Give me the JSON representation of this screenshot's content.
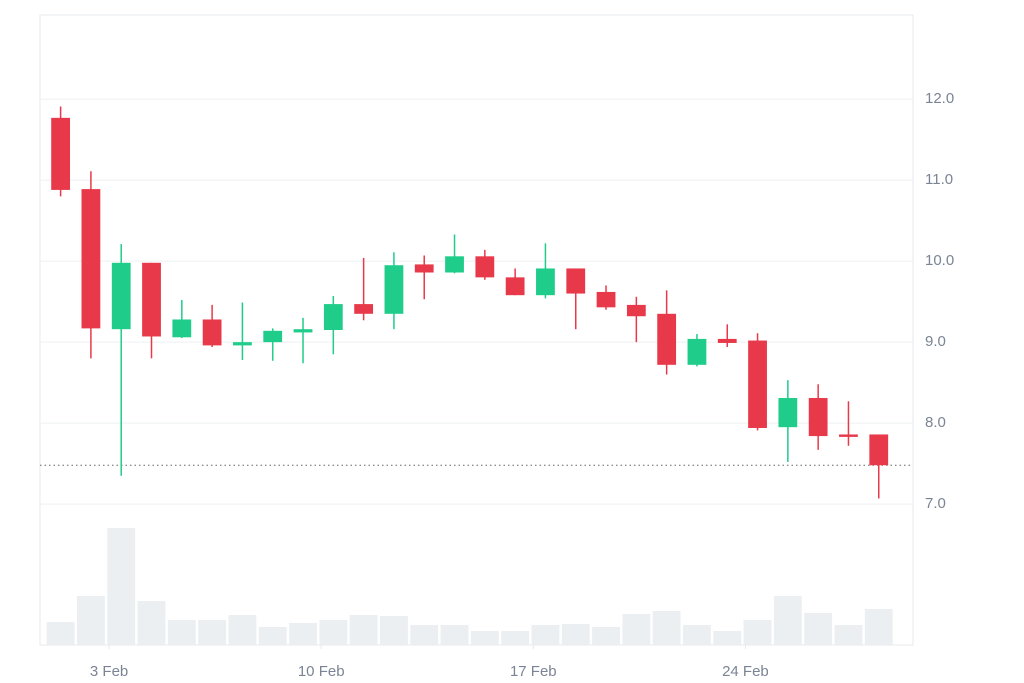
{
  "chart_data": {
    "type": "candlestick",
    "x": [
      1.4,
      2.4,
      3.4,
      4.4,
      5.4,
      6.4,
      7.4,
      8.4,
      9.4,
      10.4,
      11.4,
      12.4,
      13.4,
      14.4,
      15.4,
      16.4,
      17.4,
      18.4,
      19.4,
      20.4,
      21.4,
      22.4,
      23.4,
      24.4,
      25.4,
      26.4,
      27.4,
      28.4
    ],
    "open": [
      11.77,
      10.89,
      9.16,
      9.98,
      9.06,
      9.28,
      8.96,
      9.0,
      9.12,
      9.15,
      9.47,
      9.35,
      9.96,
      9.86,
      10.06,
      9.8,
      9.58,
      9.91,
      9.62,
      9.46,
      9.35,
      8.72,
      9.04,
      9.02,
      7.95,
      8.31,
      7.86,
      7.86
    ],
    "high": [
      11.91,
      11.11,
      10.21,
      9.98,
      9.52,
      9.46,
      9.49,
      9.17,
      9.3,
      9.57,
      10.04,
      10.11,
      10.07,
      10.33,
      10.14,
      9.91,
      10.22,
      9.91,
      9.7,
      9.56,
      9.64,
      9.1,
      9.22,
      9.11,
      8.53,
      8.48,
      8.27,
      7.86
    ],
    "low": [
      10.8,
      8.8,
      7.35,
      8.8,
      9.05,
      8.94,
      8.78,
      8.77,
      8.74,
      8.85,
      9.27,
      9.16,
      9.53,
      9.85,
      9.77,
      9.58,
      9.54,
      9.16,
      9.4,
      9.0,
      8.6,
      8.7,
      8.94,
      7.91,
      7.52,
      7.67,
      7.72,
      7.07
    ],
    "close": [
      10.88,
      9.17,
      9.98,
      9.07,
      9.28,
      8.96,
      9.0,
      9.14,
      9.16,
      9.47,
      9.35,
      9.95,
      9.86,
      10.06,
      9.8,
      9.58,
      9.91,
      9.6,
      9.43,
      9.32,
      8.72,
      9.04,
      8.99,
      7.94,
      8.31,
      7.84,
      7.83,
      7.48
    ],
    "volume": [
      23,
      49,
      117,
      44,
      25,
      25,
      30,
      18,
      22,
      25,
      30,
      29,
      20,
      20,
      14,
      14,
      20,
      21,
      18,
      31,
      34,
      20,
      14,
      25,
      49,
      32,
      20,
      36
    ],
    "up_color": "#1fcc8a",
    "down_color": "#e8394a",
    "volume_color": "#eceff2",
    "last_price": 7.48,
    "xlim": [
      0.72,
      29.53
    ],
    "xticks": [
      {
        "value": 3,
        "label": "3 Feb"
      },
      {
        "value": 10,
        "label": "10 Feb"
      },
      {
        "value": 17,
        "label": "17 Feb"
      },
      {
        "value": 24,
        "label": "24 Feb"
      }
    ],
    "ylim": [
      5.26,
      13.04
    ],
    "yticks": [
      {
        "value": 7,
        "label": "7.0"
      },
      {
        "value": 8,
        "label": "8.0"
      },
      {
        "value": 9,
        "label": "9.0"
      },
      {
        "value": 10,
        "label": "10.0"
      },
      {
        "value": 11,
        "label": "11.0"
      },
      {
        "value": 12,
        "label": "12.0"
      }
    ],
    "volume_ylim": [
      0,
      300
    ],
    "grid": true
  }
}
